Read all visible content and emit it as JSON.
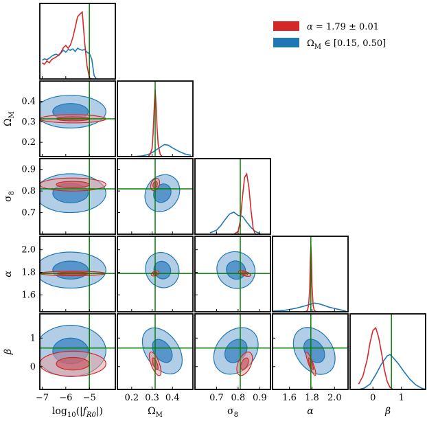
{
  "chart_data": {
    "type": "corner",
    "title": "",
    "parameters": [
      {
        "key": "logfR0",
        "label": "log10(|fR0|)",
        "range": [
          -7.1,
          -3.9
        ],
        "ticks": [
          -7,
          -6,
          -5
        ],
        "tick_labels": [
          "−7",
          "−6",
          "−5"
        ],
        "truth": -5
      },
      {
        "key": "OmegaM",
        "label": "ΩM",
        "range": [
          0.13,
          0.5
        ],
        "ticks": [
          0.2,
          0.3,
          0.4
        ],
        "tick_labels": [
          "0.2",
          "0.3",
          "0.4"
        ],
        "truth": 0.315
      },
      {
        "key": "sigma8",
        "label": "σ8",
        "range": [
          0.6,
          0.95
        ],
        "ticks": [
          0.7,
          0.8,
          0.9
        ],
        "tick_labels": [
          "0.7",
          "0.8",
          "0.9"
        ],
        "truth": 0.81
      },
      {
        "key": "alpha",
        "label": "α",
        "range": [
          1.45,
          2.12
        ],
        "ticks": [
          1.6,
          1.8,
          2.0
        ],
        "tick_labels": [
          "1.6",
          "1.8",
          "2.0"
        ],
        "truth": 1.79
      },
      {
        "key": "beta",
        "label": "β",
        "range": [
          -0.8,
          1.85
        ],
        "ticks": [
          0,
          1
        ],
        "tick_labels": [
          "0",
          "1"
        ],
        "truth": 0.65
      }
    ],
    "y_tick_labels": {
      "OmegaM": [
        "0.2",
        "0.3",
        "0.4"
      ],
      "sigma8": [
        "0.7",
        "0.8",
        "0.9"
      ],
      "alpha": [
        "1.6",
        "1.8",
        "2.0"
      ],
      "beta": [
        "0",
        "1"
      ]
    },
    "series": [
      {
        "name": "α = 1.79 ± 0.01",
        "color": "#d62728",
        "means": {
          "logfR0": -5.7,
          "OmegaM": 0.315,
          "sigma8": 0.83,
          "alpha": 1.79,
          "beta": 0.1
        },
        "sigmas": {
          "logfR0": 0.7,
          "OmegaM": 0.01,
          "sigma8": 0.015,
          "alpha": 0.01,
          "beta": 0.22
        }
      },
      {
        "name": "ΩM ∈ [0.15, 0.50]",
        "color": "#1f77b4",
        "means": {
          "logfR0": -5.8,
          "OmegaM": 0.35,
          "sigma8": 0.79,
          "alpha": 1.82,
          "beta": 0.55
        },
        "sigmas": {
          "logfR0": 0.75,
          "OmegaM": 0.04,
          "sigma8": 0.045,
          "alpha": 0.08,
          "beta": 0.45
        }
      }
    ],
    "marginals": [
      {
        "param": "logfR0",
        "red": {
          "x": [
            -7,
            -6.9,
            -6.8,
            -6.7,
            -6.6,
            -6.5,
            -6.4,
            -6.3,
            -6.2,
            -6.1,
            -6.0,
            -5.9,
            -5.8,
            -5.7,
            -5.6,
            -5.5,
            -5.4,
            -5.3,
            -5.2,
            -5.1,
            -5.0,
            -4.9
          ],
          "y": [
            0.24,
            0.22,
            0.27,
            0.24,
            0.29,
            0.31,
            0.33,
            0.36,
            0.4,
            0.47,
            0.5,
            0.46,
            0.51,
            0.62,
            0.77,
            0.93,
            0.97,
            1.0,
            0.55,
            0.2,
            0.02,
            0
          ]
        },
        "blue": {
          "x": [
            -7,
            -6.9,
            -6.8,
            -6.7,
            -6.6,
            -6.5,
            -6.4,
            -6.3,
            -6.2,
            -6.1,
            -6.0,
            -5.9,
            -5.8,
            -5.7,
            -5.6,
            -5.5,
            -5.4,
            -5.3,
            -5.2,
            -5.1,
            -5.0,
            -4.9,
            -4.8,
            -4.7
          ],
          "y": [
            0.28,
            0.3,
            0.29,
            0.31,
            0.34,
            0.36,
            0.37,
            0.35,
            0.39,
            0.43,
            0.4,
            0.44,
            0.43,
            0.45,
            0.41,
            0.46,
            0.44,
            0.43,
            0.44,
            0.4,
            0.38,
            0.3,
            0.05,
            0
          ]
        }
      },
      {
        "param": "OmegaM",
        "red": {
          "x": [
            0.28,
            0.29,
            0.3,
            0.305,
            0.31,
            0.315,
            0.32,
            0.325,
            0.33,
            0.34,
            0.35
          ],
          "y": [
            0,
            0.03,
            0.12,
            0.35,
            0.7,
            1.0,
            0.75,
            0.4,
            0.18,
            0.03,
            0
          ]
        },
        "blue": {
          "x": [
            0.2,
            0.25,
            0.28,
            0.3,
            0.32,
            0.34,
            0.36,
            0.38,
            0.4,
            0.43,
            0.46,
            0.49
          ],
          "y": [
            0,
            0.01,
            0.03,
            0.06,
            0.1,
            0.14,
            0.18,
            0.17,
            0.13,
            0.08,
            0.04,
            0.02
          ]
        }
      },
      {
        "param": "sigma8",
        "red": {
          "x": [
            0.78,
            0.8,
            0.81,
            0.82,
            0.83,
            0.84,
            0.85,
            0.86,
            0.87,
            0.88
          ],
          "y": [
            0,
            0.04,
            0.2,
            0.55,
            0.85,
            0.9,
            0.7,
            0.35,
            0.08,
            0
          ]
        },
        "blue": {
          "x": [
            0.67,
            0.7,
            0.72,
            0.74,
            0.76,
            0.78,
            0.8,
            0.82,
            0.84,
            0.86,
            0.88,
            0.9
          ],
          "y": [
            0.02,
            0.06,
            0.13,
            0.22,
            0.3,
            0.33,
            0.28,
            0.27,
            0.18,
            0.1,
            0.04,
            0.01
          ]
        }
      },
      {
        "param": "alpha",
        "red": {
          "x": [
            1.74,
            1.76,
            1.77,
            1.78,
            1.785,
            1.79,
            1.795,
            1.8,
            1.81,
            1.82,
            1.84
          ],
          "y": [
            0,
            0.02,
            0.1,
            0.35,
            0.75,
            1.0,
            0.8,
            0.4,
            0.1,
            0.02,
            0
          ]
        },
        "blue": {
          "x": [
            1.45,
            1.55,
            1.65,
            1.72,
            1.78,
            1.82,
            1.86,
            1.9,
            1.95,
            2.0,
            2.05,
            2.1
          ],
          "y": [
            0.01,
            0.02,
            0.05,
            0.08,
            0.11,
            0.13,
            0.12,
            0.1,
            0.07,
            0.05,
            0.03,
            0.01
          ]
        }
      },
      {
        "param": "beta",
        "red": {
          "x": [
            -0.5,
            -0.35,
            -0.2,
            -0.1,
            0.0,
            0.1,
            0.2,
            0.3,
            0.4,
            0.5,
            0.6,
            0.7
          ],
          "y": [
            0.08,
            0.2,
            0.45,
            0.7,
            0.88,
            0.92,
            0.78,
            0.55,
            0.3,
            0.12,
            0.03,
            0
          ]
        },
        "blue": {
          "x": [
            -0.5,
            -0.3,
            -0.1,
            0.1,
            0.3,
            0.5,
            0.6,
            0.7,
            0.9,
            1.1,
            1.3,
            1.5,
            1.7,
            1.85
          ],
          "y": [
            0.0,
            0.02,
            0.08,
            0.22,
            0.38,
            0.5,
            0.52,
            0.48,
            0.38,
            0.26,
            0.15,
            0.07,
            0.02,
            0
          ]
        }
      }
    ],
    "truth_line_color": "#008000",
    "legend": {
      "placement": "top-right",
      "entries": [
        {
          "label": "α = 1.79 ± 0.01",
          "color": "#d62728"
        },
        {
          "label": "ΩM ∈ [0.15, 0.50]",
          "color": "#1f77b4"
        }
      ]
    }
  }
}
